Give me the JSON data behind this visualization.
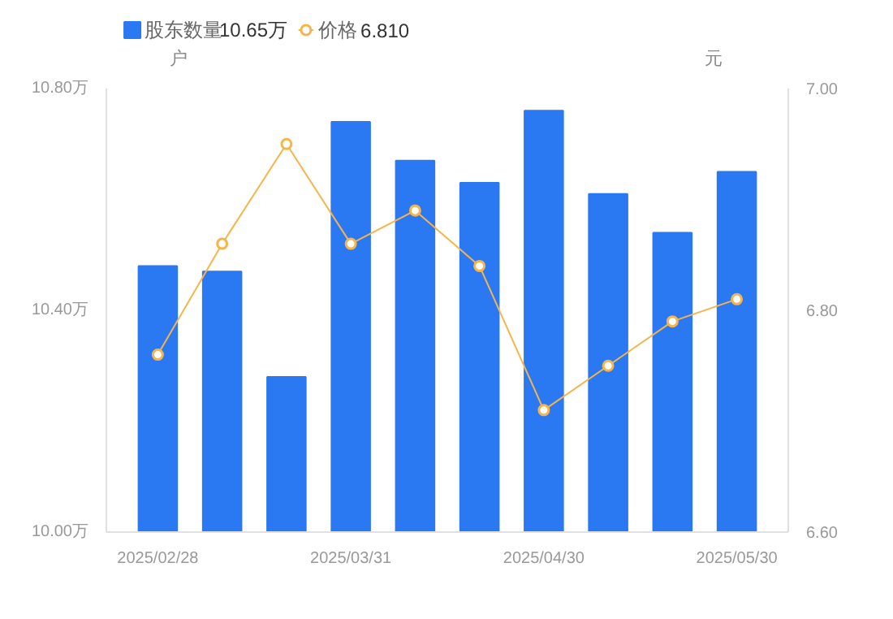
{
  "chart_data": {
    "type": "bar",
    "categories": [
      "2025/02/28",
      null,
      null,
      "2025/03/31",
      null,
      null,
      "2025/04/30",
      null,
      null,
      "2025/05/30"
    ],
    "series": [
      {
        "name": "股东数量",
        "color": "#2a78f2",
        "values": [
          10.48,
          10.47,
          10.28,
          10.74,
          10.67,
          10.63,
          10.76,
          10.61,
          10.54,
          10.65
        ]
      },
      {
        "name": "价格",
        "type": "line",
        "axis": "y2",
        "color": "#f6b54a",
        "marker": "circle",
        "values": [
          6.76,
          6.86,
          6.95,
          6.86,
          6.89,
          6.84,
          6.71,
          6.75,
          6.79,
          6.81
        ]
      }
    ],
    "annotations": [
      "10.65万",
      "6.810"
    ],
    "ylabel": "户",
    "y2label": "元",
    "ylim": [
      10.0,
      10.8
    ],
    "yticks": [
      {
        "value": 10.0,
        "label": "10.00万"
      },
      {
        "value": 10.4,
        "label": "10.40万"
      },
      {
        "value": 10.8,
        "label": "10.80万"
      }
    ],
    "y2lim": [
      6.6,
      7.0
    ],
    "y2ticks": [
      {
        "value": 6.6,
        "label": "6.60"
      },
      {
        "value": 6.8,
        "label": "6.80"
      },
      {
        "value": 7.0,
        "label": "7.00"
      }
    ],
    "grid": false,
    "legend": "top left"
  }
}
